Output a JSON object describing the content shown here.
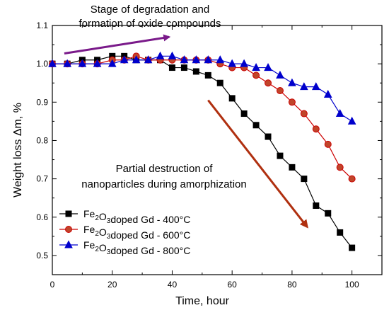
{
  "chart_data": {
    "type": "line",
    "title": "",
    "xlabel": "Time, hour",
    "ylabel": "Weight loss Δm, %",
    "xlim": [
      0,
      110
    ],
    "ylim": [
      0.45,
      1.1
    ],
    "xticks": [
      0,
      20,
      40,
      60,
      80,
      100
    ],
    "yticks": [
      0.5,
      0.6,
      0.7,
      0.8,
      0.9,
      1.0,
      1.1
    ],
    "xtick_labels": [
      "0",
      "20",
      "40",
      "60",
      "80",
      "100"
    ],
    "ytick_labels": [
      "0.5",
      "0.6",
      "0.7",
      "0.8",
      "0.9",
      "1.0",
      "1.1"
    ],
    "grid": false,
    "legend_position": "bottom-left",
    "series": [
      {
        "name": "doped Gd - 400°C",
        "legend_prefix": "Fe",
        "legend_sub1": "2",
        "legend_mid": "O",
        "legend_sub2": "3",
        "color": "#000000",
        "marker": "square",
        "x": [
          0,
          5,
          10,
          15,
          20,
          24,
          28,
          32,
          36,
          40,
          44,
          48,
          52,
          56,
          60,
          64,
          68,
          72,
          76,
          80,
          84,
          88,
          92,
          96,
          100
        ],
        "y": [
          1.0,
          1.0,
          1.01,
          1.01,
          1.02,
          1.02,
          1.01,
          1.01,
          1.01,
          0.99,
          0.99,
          0.98,
          0.97,
          0.95,
          0.91,
          0.87,
          0.84,
          0.81,
          0.76,
          0.73,
          0.7,
          0.63,
          0.61,
          0.56,
          0.52
        ]
      },
      {
        "name": "doped Gd - 600°C",
        "legend_prefix": "Fe",
        "legend_sub1": "2",
        "legend_mid": "O",
        "legend_sub2": "3",
        "color": "#cc0000",
        "marker": "circle",
        "x": [
          0,
          5,
          10,
          15,
          20,
          24,
          28,
          32,
          36,
          40,
          44,
          48,
          52,
          56,
          60,
          64,
          68,
          72,
          76,
          80,
          84,
          88,
          92,
          96,
          100
        ],
        "y": [
          1.0,
          1.0,
          1.0,
          1.0,
          1.01,
          1.01,
          1.02,
          1.01,
          1.01,
          1.01,
          1.01,
          1.01,
          1.01,
          1.0,
          0.99,
          0.99,
          0.97,
          0.95,
          0.93,
          0.9,
          0.87,
          0.83,
          0.79,
          0.73,
          0.7
        ]
      },
      {
        "name": "doped Gd - 800°C",
        "legend_prefix": "Fe",
        "legend_sub1": "2",
        "legend_mid": "O",
        "legend_sub2": "3",
        "color": "#0000cc",
        "marker": "triangle",
        "x": [
          0,
          5,
          10,
          15,
          20,
          24,
          28,
          32,
          36,
          40,
          44,
          48,
          52,
          56,
          60,
          64,
          68,
          72,
          76,
          80,
          84,
          88,
          92,
          96,
          100
        ],
        "y": [
          1.0,
          1.0,
          1.0,
          1.0,
          1.0,
          1.01,
          1.01,
          1.01,
          1.02,
          1.02,
          1.01,
          1.01,
          1.01,
          1.01,
          1.0,
          1.0,
          0.99,
          0.99,
          0.97,
          0.95,
          0.94,
          0.94,
          0.92,
          0.87,
          0.85
        ]
      }
    ],
    "annotations": [
      {
        "name": "annotation-degradation",
        "lines": [
          "Stage of degradation and",
          "formation of oxide compounds"
        ]
      },
      {
        "name": "annotation-destruction",
        "lines": [
          "Partial destruction of",
          "nanoparticles during amorphization"
        ]
      }
    ],
    "arrows": [
      {
        "name": "degradation-arrow",
        "from": [
          4,
          1.027
        ],
        "to": [
          39,
          1.07
        ],
        "color": "#7a1a8a"
      },
      {
        "name": "destruction-arrow",
        "from": [
          52,
          0.905
        ],
        "to": [
          85,
          0.575
        ],
        "color": "#b03010"
      }
    ]
  }
}
